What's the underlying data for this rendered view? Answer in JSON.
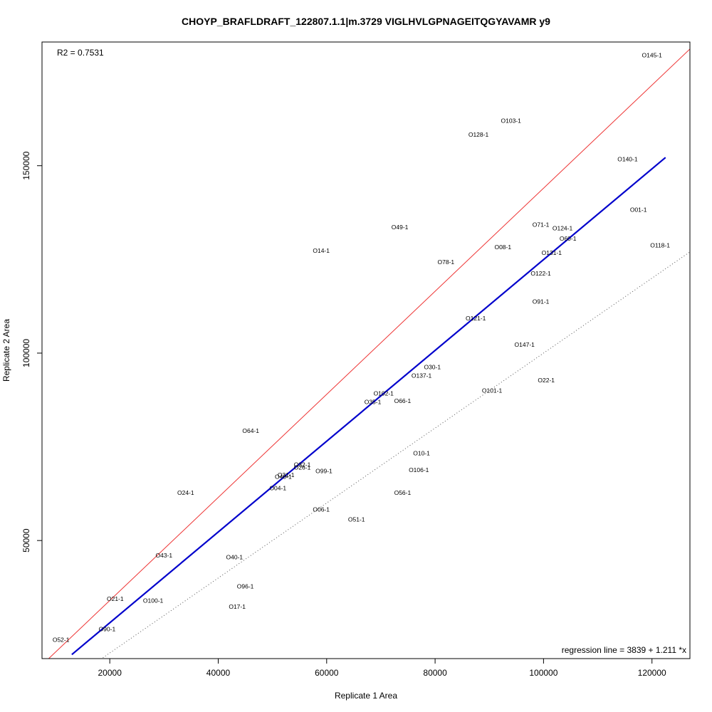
{
  "chart_data": {
    "type": "scatter",
    "title": "CHOYP_BRAFLDRAFT_122807.1.1|m.3729 VIGLHVLGPNAGEITQGYAVAMR y9",
    "xlabel": "Replicate 1 Area",
    "ylabel": "Replicate 2 Area",
    "xlim": [
      7500,
      127000
    ],
    "ylim": [
      18500,
      183000
    ],
    "x_ticks": [
      20000,
      40000,
      60000,
      80000,
      100000,
      120000
    ],
    "x_tick_labels": [
      "20000",
      "40000",
      "60000",
      "80000",
      "100000",
      "120000"
    ],
    "y_ticks": [
      50000,
      100000,
      150000
    ],
    "y_tick_labels": [
      "50000",
      "100000",
      "150000"
    ],
    "r2_text": "R2 = 0.7531",
    "regression_text": "regression line = 3839 + 1.211 *x",
    "regression": {
      "intercept": 3839,
      "slope": 1.211,
      "x_range": [
        13000,
        122500
      ],
      "color": "#0000cc"
    },
    "fit_line": {
      "intercept": 6500,
      "slope": 1.375,
      "color": "#ee3333"
    },
    "identity_line": {
      "intercept": 0,
      "slope": 1,
      "style": "dotted",
      "color": "#555555"
    },
    "points": [
      {
        "label": "O145-1",
        "x": 120000,
        "y": 179500
      },
      {
        "label": "O103-1",
        "x": 94000,
        "y": 162000
      },
      {
        "label": "O128-1",
        "x": 88000,
        "y": 158300
      },
      {
        "label": "O140-1",
        "x": 115500,
        "y": 151800
      },
      {
        "label": "O01-1",
        "x": 117500,
        "y": 138300
      },
      {
        "label": "O71-1",
        "x": 99500,
        "y": 134300
      },
      {
        "label": "O124-1",
        "x": 103500,
        "y": 133300
      },
      {
        "label": "O49-1",
        "x": 73500,
        "y": 133600
      },
      {
        "label": "O60-1",
        "x": 104500,
        "y": 130600
      },
      {
        "label": "O118-1",
        "x": 121500,
        "y": 128800
      },
      {
        "label": "O08-1",
        "x": 92500,
        "y": 128300
      },
      {
        "label": "O14-1",
        "x": 59000,
        "y": 127300
      },
      {
        "label": "O131-1",
        "x": 101500,
        "y": 126800
      },
      {
        "label": "O78-1",
        "x": 82000,
        "y": 124300
      },
      {
        "label": "O122-1",
        "x": 99500,
        "y": 121300
      },
      {
        "label": "O91-1",
        "x": 99500,
        "y": 113800
      },
      {
        "label": "O121-1",
        "x": 87500,
        "y": 109300
      },
      {
        "label": "O147-1",
        "x": 96500,
        "y": 102300
      },
      {
        "label": "O30-1",
        "x": 79500,
        "y": 96300
      },
      {
        "label": "O137-1",
        "x": 77500,
        "y": 94000
      },
      {
        "label": "O22-1",
        "x": 100500,
        "y": 92800
      },
      {
        "label": "O102-1",
        "x": 70500,
        "y": 89300
      },
      {
        "label": "O101-1",
        "x": 90500,
        "y": 90000
      },
      {
        "label": "O35-1",
        "x": 68500,
        "y": 87000
      },
      {
        "label": "O66-1",
        "x": 74000,
        "y": 87300
      },
      {
        "label": "O64-1",
        "x": 46000,
        "y": 79300
      },
      {
        "label": "O10-1",
        "x": 77500,
        "y": 73300
      },
      {
        "label": "O32-1",
        "x": 55500,
        "y": 70300
      },
      {
        "label": "O26-1",
        "x": 55500,
        "y": 69500
      },
      {
        "label": "O106-1",
        "x": 77000,
        "y": 68800
      },
      {
        "label": "O99-1",
        "x": 59500,
        "y": 68600
      },
      {
        "label": "O31-1",
        "x": 52500,
        "y": 67500
      },
      {
        "label": "O40-1",
        "x": 52000,
        "y": 67000
      },
      {
        "label": "O04-1",
        "x": 51000,
        "y": 64000
      },
      {
        "label": "O24-1",
        "x": 34000,
        "y": 62800
      },
      {
        "label": "O56-1",
        "x": 74000,
        "y": 62800
      },
      {
        "label": "O06-1",
        "x": 59000,
        "y": 58300
      },
      {
        "label": "O51-1",
        "x": 65500,
        "y": 55600
      },
      {
        "label": "O43-1",
        "x": 30000,
        "y": 46000
      },
      {
        "label": "O40-1",
        "x": 43000,
        "y": 45600
      },
      {
        "label": "O96-1",
        "x": 45000,
        "y": 37800
      },
      {
        "label": "O21-1",
        "x": 21000,
        "y": 34500
      },
      {
        "label": "O100-1",
        "x": 28000,
        "y": 34000
      },
      {
        "label": "O17-1",
        "x": 43500,
        "y": 32400
      },
      {
        "label": "O90-1",
        "x": 19500,
        "y": 26400
      },
      {
        "label": "O52-1",
        "x": 11000,
        "y": 23500
      }
    ]
  }
}
